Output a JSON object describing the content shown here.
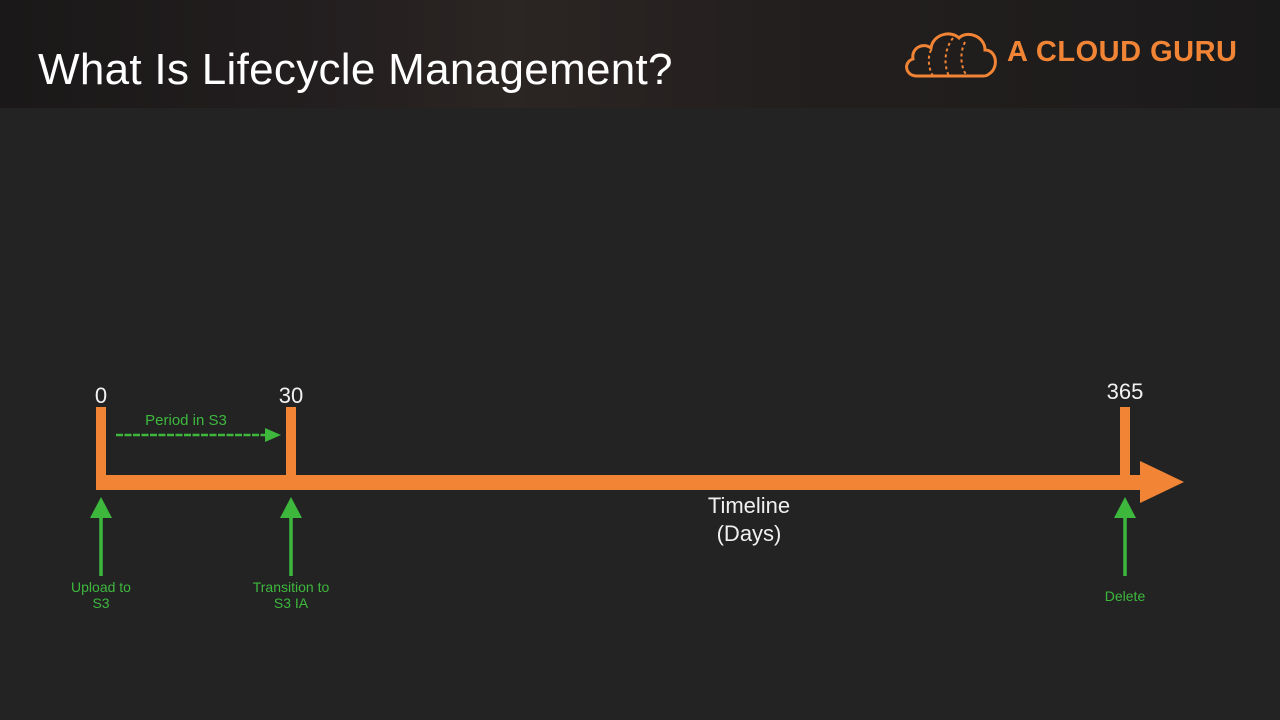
{
  "slide": {
    "title": "What Is Lifecycle Management?"
  },
  "brand": {
    "name": "A CLOUD GURU",
    "icon": "cloud-logo-icon",
    "color": "#f28535"
  },
  "timeline": {
    "axis_title_line1": "Timeline",
    "axis_title_line2": "(Days)",
    "axis_color": "#f28535",
    "annotation_color": "#3db83d",
    "ticks": [
      {
        "value": 0,
        "label": "0"
      },
      {
        "value": 30,
        "label": "30"
      },
      {
        "value": 365,
        "label": "365"
      }
    ],
    "period": {
      "label": "Period in S3",
      "from": 0,
      "to": 30
    },
    "events": [
      {
        "day": 0,
        "line1": "Upload to",
        "line2": "S3"
      },
      {
        "day": 30,
        "line1": "Transition to",
        "line2": "S3 IA"
      },
      {
        "day": 365,
        "line1": "Delete",
        "line2": ""
      }
    ]
  }
}
